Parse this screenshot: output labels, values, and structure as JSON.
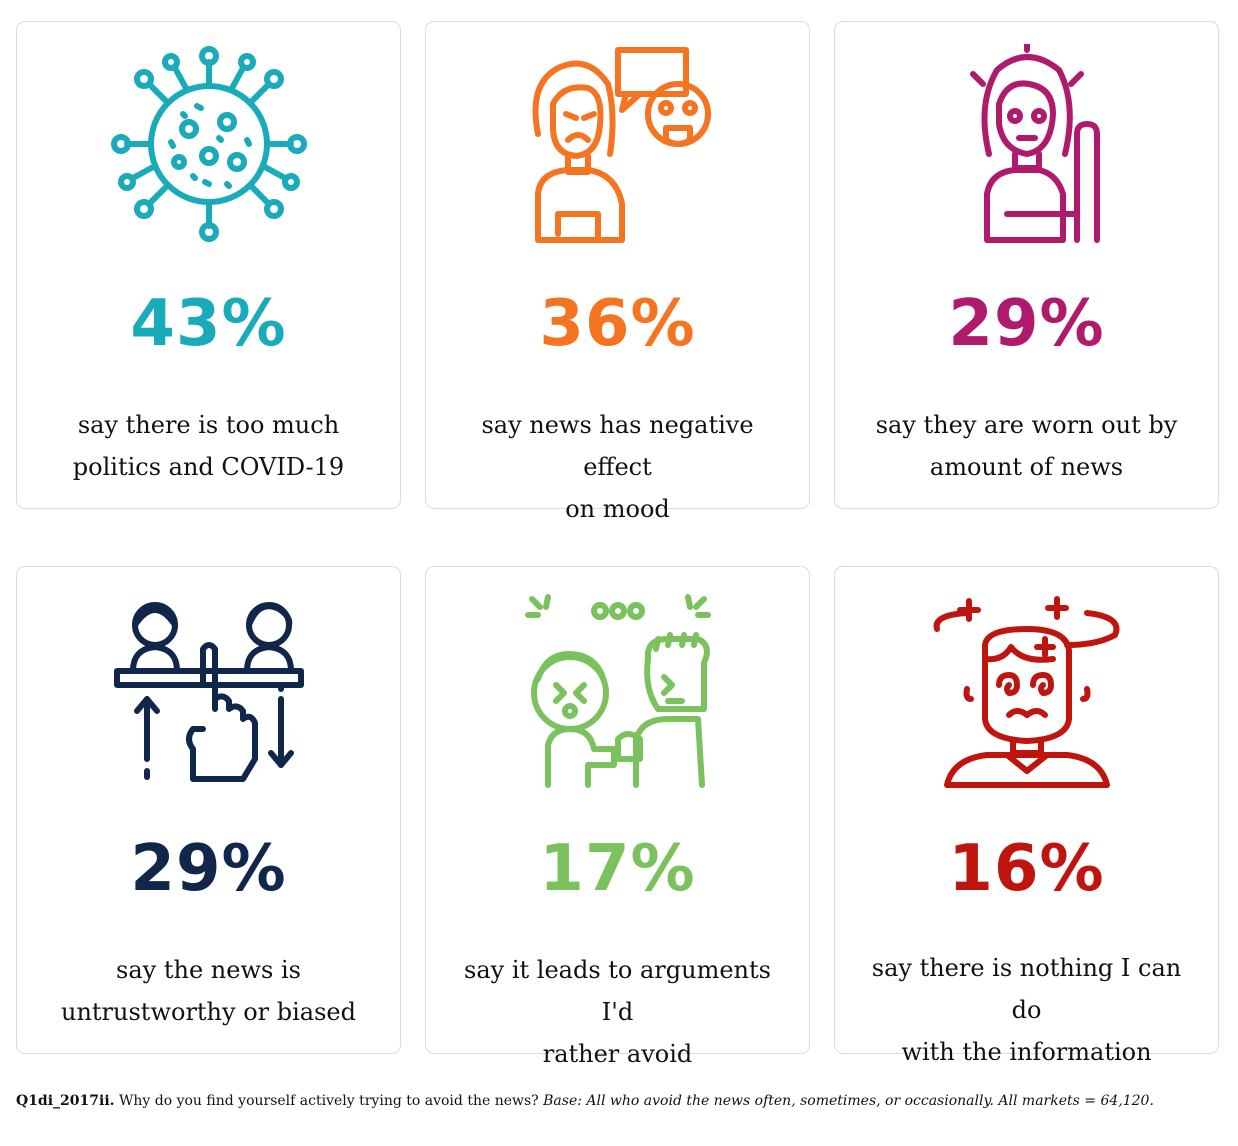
{
  "chart_data": {
    "type": "bar",
    "categories": [
      "say there is too much politics and COVID-19",
      "say news has negative effect on mood",
      "say they are worn out by amount of news",
      "say the news is untrustworthy or biased",
      "say it leads to arguments I'd rather avoid",
      "say there is nothing I can do with the information"
    ],
    "values": [
      43,
      36,
      29,
      29,
      17,
      16
    ],
    "unit": "%"
  },
  "cards": [
    {
      "value": "43%",
      "line1": "say there is too much",
      "line2": "politics and COVID-19",
      "color": "#1aabbb",
      "icon": "virus-icon"
    },
    {
      "value": "36%",
      "line1": "say news has negative effect",
      "line2": "on mood",
      "color": "#f47421",
      "icon": "sad-woman-speech-icon"
    },
    {
      "value": "29%",
      "line1": "say they are worn out by",
      "line2": "amount of news",
      "color": "#b01a6c",
      "icon": "tired-woman-icon"
    },
    {
      "value": "29%",
      "line1": "say the news is",
      "line2": "untrustworthy or biased",
      "color": "#10264b",
      "icon": "balance-hand-icon"
    },
    {
      "value": "17%",
      "line1": "say it leads to arguments I'd",
      "line2": "rather avoid",
      "color": "#7bc25f",
      "icon": "arguing-people-icon"
    },
    {
      "value": "16%",
      "line1": "say there is nothing I can do",
      "line2": "with the information",
      "color": "#c0150e",
      "icon": "dizzy-man-icon"
    }
  ],
  "footnote": {
    "question_id": "Q1di_2017ii.",
    "question": " Why do you find yourself actively trying to avoid the news? ",
    "base": "Base: All who avoid the news often, sometimes, or occasionally. All markets = 64,120."
  }
}
